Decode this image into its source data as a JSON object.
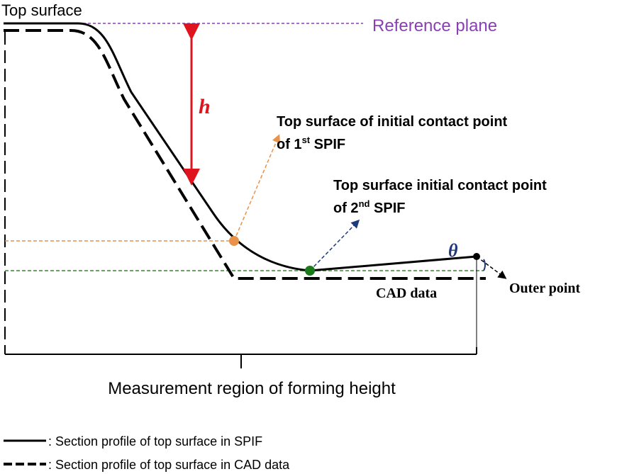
{
  "labels": {
    "top_surface": "Top surface",
    "reference_plane": "Reference plane",
    "h": "h",
    "first_contact": {
      "line1": "Top surface of initial contact point",
      "pre": "of 1",
      "sup": "st",
      "post": " SPIF"
    },
    "second_contact": {
      "line1": "Top surface initial contact point",
      "pre": "of 2",
      "sup": "nd",
      "post": " SPIF"
    },
    "theta": "θ",
    "outer_point": "Outer point",
    "cad_data": "CAD data",
    "measurement_region": "Measurement region of forming height"
  },
  "legend": [
    {
      "label": ": Section profile of top surface in SPIF"
    },
    {
      "label": ": Section profile of top surface in CAD data"
    }
  ]
}
